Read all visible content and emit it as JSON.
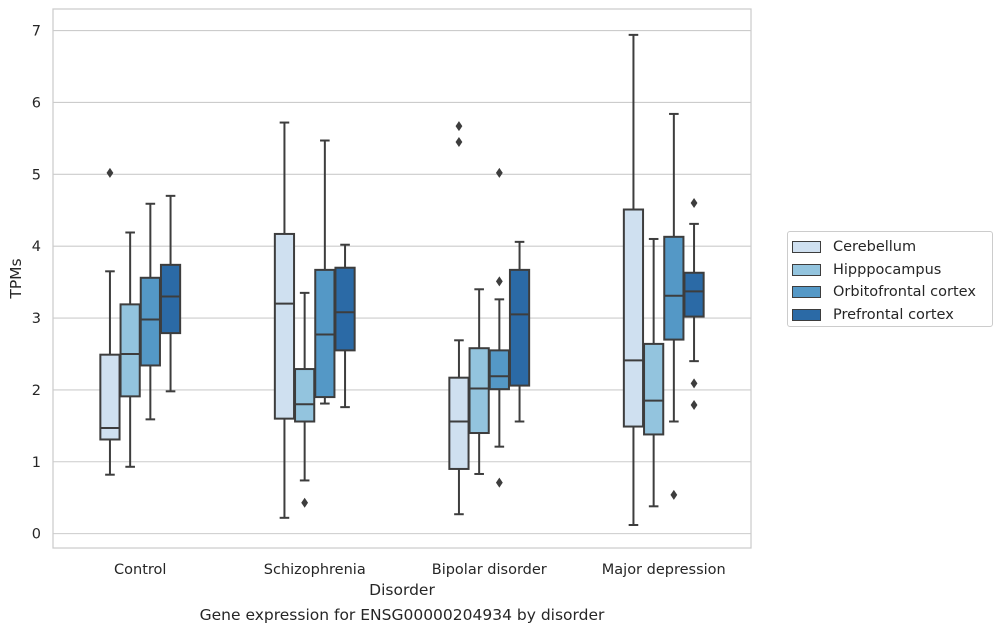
{
  "chart_data": {
    "type": "box",
    "title": "",
    "caption": "Gene expression for ENSG00000204934 by disorder",
    "xlabel": "Disorder",
    "ylabel": "TPMs",
    "ylim": [
      -0.2,
      7.3
    ],
    "yticks": [
      0,
      1,
      2,
      3,
      4,
      5,
      6,
      7
    ],
    "grid": "horizontal",
    "legend_position": "right",
    "categories": [
      "Control",
      "Schizophrenia",
      "Bipolar disorder",
      "Major depression"
    ],
    "series": [
      {
        "name": "Cerebellum",
        "color": "#cfe0f0",
        "boxes": [
          {
            "whisker_low": 0.82,
            "q1": 1.31,
            "median": 1.47,
            "q3": 2.49,
            "whisker_high": 3.65,
            "outliers": [
              5.02
            ]
          },
          {
            "whisker_low": 0.22,
            "q1": 1.6,
            "median": 3.2,
            "q3": 4.17,
            "whisker_high": 5.72,
            "outliers": []
          },
          {
            "whisker_low": 0.27,
            "q1": 0.9,
            "median": 1.56,
            "q3": 2.17,
            "whisker_high": 2.69,
            "outliers": [
              5.45,
              5.67
            ]
          },
          {
            "whisker_low": 0.12,
            "q1": 1.49,
            "median": 2.41,
            "q3": 4.51,
            "whisker_high": 6.94,
            "outliers": []
          }
        ]
      },
      {
        "name": "Hipppocampus",
        "color": "#93c4de",
        "boxes": [
          {
            "whisker_low": 0.93,
            "q1": 1.91,
            "median": 2.5,
            "q3": 3.19,
            "whisker_high": 4.19,
            "outliers": []
          },
          {
            "whisker_low": 0.74,
            "q1": 1.56,
            "median": 1.8,
            "q3": 2.29,
            "whisker_high": 3.35,
            "outliers": [
              0.43
            ]
          },
          {
            "whisker_low": 0.83,
            "q1": 1.4,
            "median": 2.02,
            "q3": 2.58,
            "whisker_high": 3.4,
            "outliers": []
          },
          {
            "whisker_low": 0.38,
            "q1": 1.38,
            "median": 1.85,
            "q3": 2.64,
            "whisker_high": 4.1,
            "outliers": []
          }
        ]
      },
      {
        "name": "Orbitofrontal cortex",
        "color": "#5498c6",
        "boxes": [
          {
            "whisker_low": 1.59,
            "q1": 2.34,
            "median": 2.98,
            "q3": 3.56,
            "whisker_high": 4.59,
            "outliers": []
          },
          {
            "whisker_low": 1.81,
            "q1": 1.9,
            "median": 2.77,
            "q3": 3.67,
            "whisker_high": 5.47,
            "outliers": []
          },
          {
            "whisker_low": 1.21,
            "q1": 2.01,
            "median": 2.19,
            "q3": 2.55,
            "whisker_high": 3.26,
            "outliers": [
              0.71,
              3.51,
              5.02
            ]
          },
          {
            "whisker_low": 1.56,
            "q1": 2.7,
            "median": 3.31,
            "q3": 4.13,
            "whisker_high": 5.84,
            "outliers": [
              0.54
            ]
          }
        ]
      },
      {
        "name": "Prefrontal cortex",
        "color": "#2b6aa6",
        "boxes": [
          {
            "whisker_low": 1.98,
            "q1": 2.79,
            "median": 3.3,
            "q3": 3.74,
            "whisker_high": 4.7,
            "outliers": []
          },
          {
            "whisker_low": 1.76,
            "q1": 2.55,
            "median": 3.08,
            "q3": 3.7,
            "whisker_high": 4.02,
            "outliers": []
          },
          {
            "whisker_low": 1.56,
            "q1": 2.06,
            "median": 3.05,
            "q3": 3.67,
            "whisker_high": 4.06,
            "outliers": []
          },
          {
            "whisker_low": 2.4,
            "q1": 3.02,
            "median": 3.37,
            "q3": 3.63,
            "whisker_high": 4.31,
            "outliers": [
              1.79,
              2.09,
              4.6
            ]
          }
        ]
      }
    ]
  }
}
